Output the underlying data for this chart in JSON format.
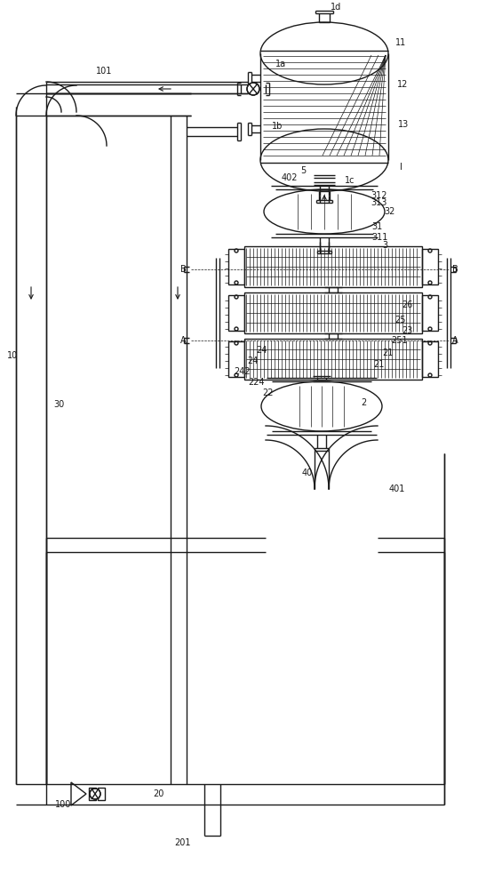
{
  "bg": "#ffffff",
  "lc": "#1a1a1a",
  "lw": 1.0,
  "tlw": 0.5,
  "fs": 7.0,
  "xlim": [
    0,
    538
  ],
  "ylim": [
    0,
    1000
  ]
}
